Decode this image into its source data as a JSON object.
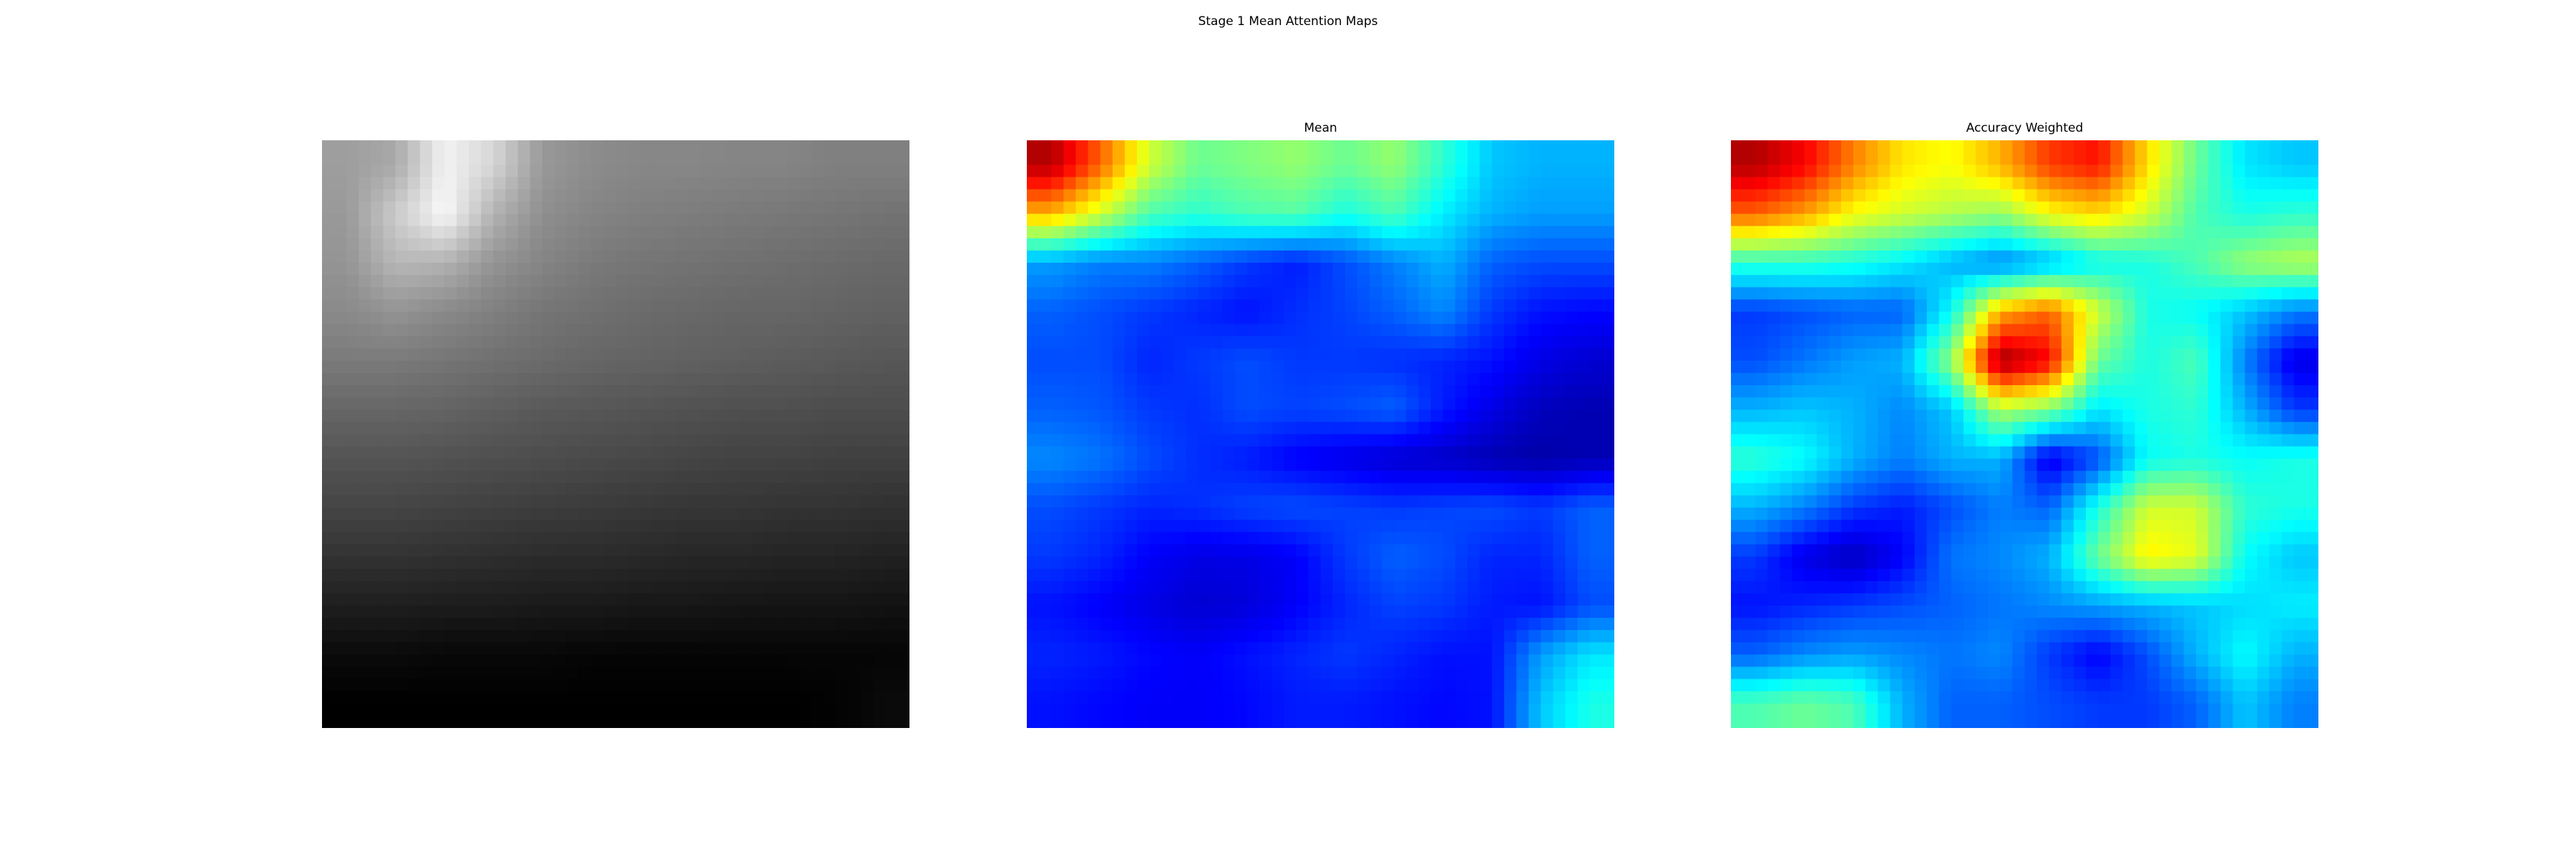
{
  "figure": {
    "title": "Stage 1 Mean Attention Maps"
  },
  "colors": {
    "colormap": "jet",
    "input_colormap": "gray",
    "background": "#ffffff"
  },
  "chart_data": [
    {
      "type": "heatmap",
      "title": "",
      "colormap": "gray",
      "axis": "off",
      "grid": false,
      "values": [
        [
          0.62,
          0.66,
          0.95,
          0.84,
          0.6,
          0.55,
          0.53,
          0.53,
          0.52,
          0.52,
          0.5,
          0.5
        ],
        [
          0.6,
          0.8,
          0.98,
          0.7,
          0.56,
          0.52,
          0.5,
          0.49,
          0.48,
          0.47,
          0.46,
          0.45
        ],
        [
          0.58,
          0.72,
          0.7,
          0.58,
          0.52,
          0.48,
          0.46,
          0.45,
          0.44,
          0.43,
          0.42,
          0.41
        ],
        [
          0.54,
          0.58,
          0.54,
          0.5,
          0.46,
          0.44,
          0.42,
          0.41,
          0.4,
          0.4,
          0.39,
          0.38
        ],
        [
          0.48,
          0.48,
          0.46,
          0.44,
          0.42,
          0.4,
          0.39,
          0.38,
          0.37,
          0.36,
          0.35,
          0.34
        ],
        [
          0.4,
          0.4,
          0.39,
          0.37,
          0.35,
          0.34,
          0.33,
          0.32,
          0.31,
          0.31,
          0.3,
          0.3
        ],
        [
          0.33,
          0.33,
          0.32,
          0.31,
          0.3,
          0.29,
          0.28,
          0.27,
          0.26,
          0.26,
          0.25,
          0.25
        ],
        [
          0.27,
          0.27,
          0.26,
          0.25,
          0.24,
          0.23,
          0.22,
          0.21,
          0.21,
          0.2,
          0.2,
          0.19
        ],
        [
          0.2,
          0.2,
          0.19,
          0.18,
          0.17,
          0.17,
          0.16,
          0.15,
          0.15,
          0.14,
          0.14,
          0.13
        ],
        [
          0.12,
          0.12,
          0.11,
          0.11,
          0.1,
          0.1,
          0.09,
          0.09,
          0.08,
          0.08,
          0.08,
          0.07
        ],
        [
          0.04,
          0.04,
          0.03,
          0.03,
          0.03,
          0.02,
          0.02,
          0.02,
          0.02,
          0.02,
          0.02,
          0.02
        ],
        [
          0.0,
          0.0,
          0.0,
          0.0,
          0.0,
          0.0,
          0.0,
          0.0,
          0.0,
          0.0,
          0.01,
          0.04
        ]
      ]
    },
    {
      "type": "heatmap",
      "title": "Mean",
      "colormap": "jet",
      "axis": "off",
      "grid": false,
      "values": [
        [
          0.95,
          0.78,
          0.58,
          0.48,
          0.5,
          0.52,
          0.48,
          0.52,
          0.42,
          0.32,
          0.3,
          0.3
        ],
        [
          0.7,
          0.58,
          0.45,
          0.42,
          0.45,
          0.46,
          0.4,
          0.45,
          0.36,
          0.3,
          0.28,
          0.28
        ],
        [
          0.28,
          0.25,
          0.25,
          0.22,
          0.18,
          0.15,
          0.2,
          0.25,
          0.3,
          0.22,
          0.2,
          0.2
        ],
        [
          0.22,
          0.2,
          0.18,
          0.16,
          0.14,
          0.17,
          0.19,
          0.22,
          0.26,
          0.18,
          0.14,
          0.13
        ],
        [
          0.2,
          0.2,
          0.16,
          0.18,
          0.2,
          0.18,
          0.18,
          0.17,
          0.16,
          0.14,
          0.1,
          0.08
        ],
        [
          0.22,
          0.21,
          0.18,
          0.17,
          0.2,
          0.19,
          0.2,
          0.22,
          0.15,
          0.1,
          0.06,
          0.05
        ],
        [
          0.26,
          0.24,
          0.2,
          0.17,
          0.15,
          0.12,
          0.1,
          0.08,
          0.07,
          0.05,
          0.04,
          0.05
        ],
        [
          0.2,
          0.18,
          0.16,
          0.17,
          0.19,
          0.2,
          0.19,
          0.18,
          0.19,
          0.2,
          0.18,
          0.22
        ],
        [
          0.18,
          0.16,
          0.12,
          0.1,
          0.1,
          0.12,
          0.18,
          0.22,
          0.2,
          0.16,
          0.16,
          0.22
        ],
        [
          0.14,
          0.12,
          0.1,
          0.08,
          0.09,
          0.12,
          0.16,
          0.19,
          0.18,
          0.15,
          0.14,
          0.2
        ],
        [
          0.16,
          0.15,
          0.13,
          0.12,
          0.14,
          0.16,
          0.18,
          0.16,
          0.14,
          0.14,
          0.28,
          0.35
        ],
        [
          0.14,
          0.13,
          0.12,
          0.12,
          0.13,
          0.15,
          0.15,
          0.14,
          0.13,
          0.14,
          0.32,
          0.4
        ]
      ]
    },
    {
      "type": "heatmap",
      "title": "Accuracy Weighted",
      "colormap": "jet",
      "axis": "off",
      "grid": false,
      "values": [
        [
          0.95,
          0.88,
          0.75,
          0.65,
          0.62,
          0.7,
          0.82,
          0.86,
          0.66,
          0.48,
          0.35,
          0.32
        ],
        [
          0.78,
          0.72,
          0.62,
          0.58,
          0.55,
          0.52,
          0.62,
          0.66,
          0.58,
          0.45,
          0.4,
          0.42
        ],
        [
          0.42,
          0.42,
          0.4,
          0.36,
          0.3,
          0.25,
          0.3,
          0.38,
          0.4,
          0.45,
          0.52,
          0.55
        ],
        [
          0.18,
          0.2,
          0.22,
          0.22,
          0.38,
          0.7,
          0.78,
          0.58,
          0.4,
          0.38,
          0.32,
          0.25
        ],
        [
          0.2,
          0.24,
          0.28,
          0.3,
          0.52,
          0.98,
          0.88,
          0.48,
          0.4,
          0.45,
          0.25,
          0.1
        ],
        [
          0.3,
          0.32,
          0.3,
          0.26,
          0.32,
          0.55,
          0.5,
          0.35,
          0.4,
          0.42,
          0.3,
          0.18
        ],
        [
          0.42,
          0.38,
          0.3,
          0.25,
          0.3,
          0.3,
          0.1,
          0.2,
          0.38,
          0.4,
          0.38,
          0.4
        ],
        [
          0.3,
          0.25,
          0.18,
          0.15,
          0.2,
          0.25,
          0.22,
          0.4,
          0.58,
          0.58,
          0.42,
          0.4
        ],
        [
          0.18,
          0.1,
          0.06,
          0.12,
          0.24,
          0.26,
          0.3,
          0.48,
          0.64,
          0.6,
          0.38,
          0.32
        ],
        [
          0.14,
          0.16,
          0.18,
          0.2,
          0.22,
          0.24,
          0.26,
          0.28,
          0.3,
          0.32,
          0.34,
          0.36
        ],
        [
          0.22,
          0.26,
          0.28,
          0.26,
          0.24,
          0.26,
          0.18,
          0.12,
          0.2,
          0.3,
          0.38,
          0.3
        ],
        [
          0.45,
          0.48,
          0.45,
          0.3,
          0.22,
          0.22,
          0.2,
          0.18,
          0.18,
          0.22,
          0.32,
          0.25
        ]
      ]
    }
  ]
}
